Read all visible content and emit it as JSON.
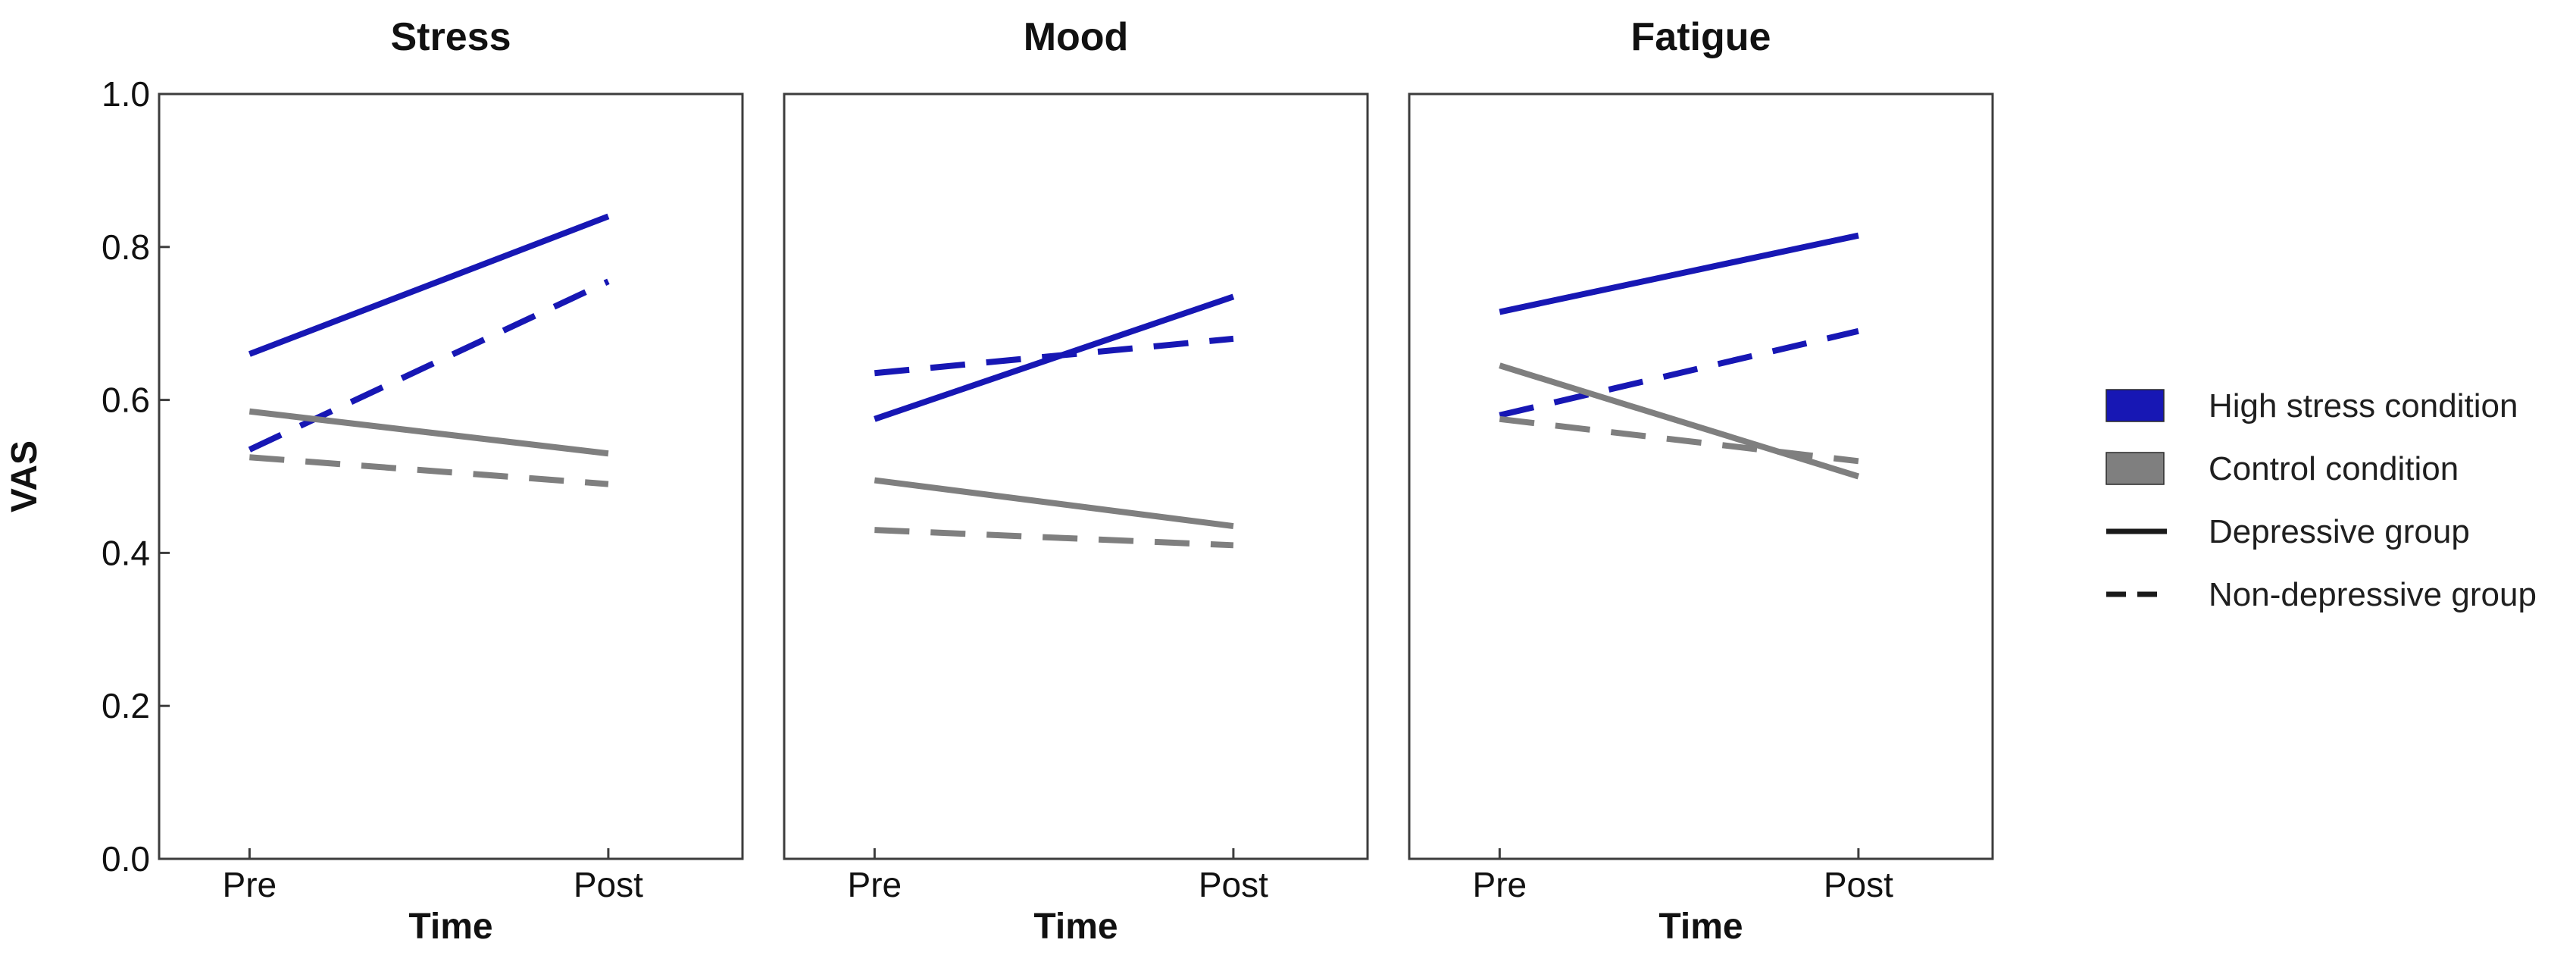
{
  "figure": {
    "background": "#ffffff",
    "frame_color": "#3d3d3d",
    "text_color": "#111111"
  },
  "chart_data": {
    "type": "line",
    "x": [
      "Pre",
      "Post"
    ],
    "xlabel": "Time",
    "ylabel": "VAS",
    "ylim": [
      0.0,
      1.0
    ],
    "y_ticks": [
      "0.0",
      "0.2",
      "0.4",
      "0.6",
      "0.8",
      "1.0"
    ],
    "grid": false,
    "legend_position": "right-outside",
    "colors": {
      "high_stress": "#1717b4",
      "control": "#7f7f7f",
      "legend_line": "#1a1a1a"
    },
    "panels": [
      {
        "title": "Stress",
        "series": [
          {
            "name": "High stress condition / Depressive group",
            "condition": "high_stress",
            "style": "solid",
            "values": [
              0.66,
              0.84
            ]
          },
          {
            "name": "High stress condition / Non-depressive group",
            "condition": "high_stress",
            "style": "dashed",
            "values": [
              0.535,
              0.755
            ]
          },
          {
            "name": "Control condition / Depressive group",
            "condition": "control",
            "style": "solid",
            "values": [
              0.585,
              0.53
            ]
          },
          {
            "name": "Control condition / Non-depressive group",
            "condition": "control",
            "style": "dashed",
            "values": [
              0.525,
              0.49
            ]
          }
        ]
      },
      {
        "title": "Mood",
        "series": [
          {
            "name": "High stress condition / Depressive group",
            "condition": "high_stress",
            "style": "solid",
            "values": [
              0.575,
              0.735
            ]
          },
          {
            "name": "High stress condition / Non-depressive group",
            "condition": "high_stress",
            "style": "dashed",
            "values": [
              0.635,
              0.68
            ]
          },
          {
            "name": "Control condition / Depressive group",
            "condition": "control",
            "style": "solid",
            "values": [
              0.495,
              0.435
            ]
          },
          {
            "name": "Control condition / Non-depressive group",
            "condition": "control",
            "style": "dashed",
            "values": [
              0.43,
              0.41
            ]
          }
        ]
      },
      {
        "title": "Fatigue",
        "series": [
          {
            "name": "High stress condition / Depressive group",
            "condition": "high_stress",
            "style": "solid",
            "values": [
              0.715,
              0.815
            ]
          },
          {
            "name": "High stress condition / Non-depressive group",
            "condition": "high_stress",
            "style": "dashed",
            "values": [
              0.58,
              0.69
            ]
          },
          {
            "name": "Control condition / Depressive group",
            "condition": "control",
            "style": "solid",
            "values": [
              0.645,
              0.5
            ]
          },
          {
            "name": "Control condition / Non-depressive group",
            "condition": "control",
            "style": "dashed",
            "values": [
              0.575,
              0.52
            ]
          }
        ]
      }
    ],
    "legend": [
      {
        "label": "High stress condition",
        "swatch": "patch",
        "condition": "high_stress"
      },
      {
        "label": "Control condition",
        "swatch": "patch",
        "condition": "control"
      },
      {
        "label": "Depressive group",
        "swatch": "line",
        "style": "solid"
      },
      {
        "label": "Non-depressive group",
        "swatch": "line",
        "style": "dashed"
      }
    ]
  }
}
